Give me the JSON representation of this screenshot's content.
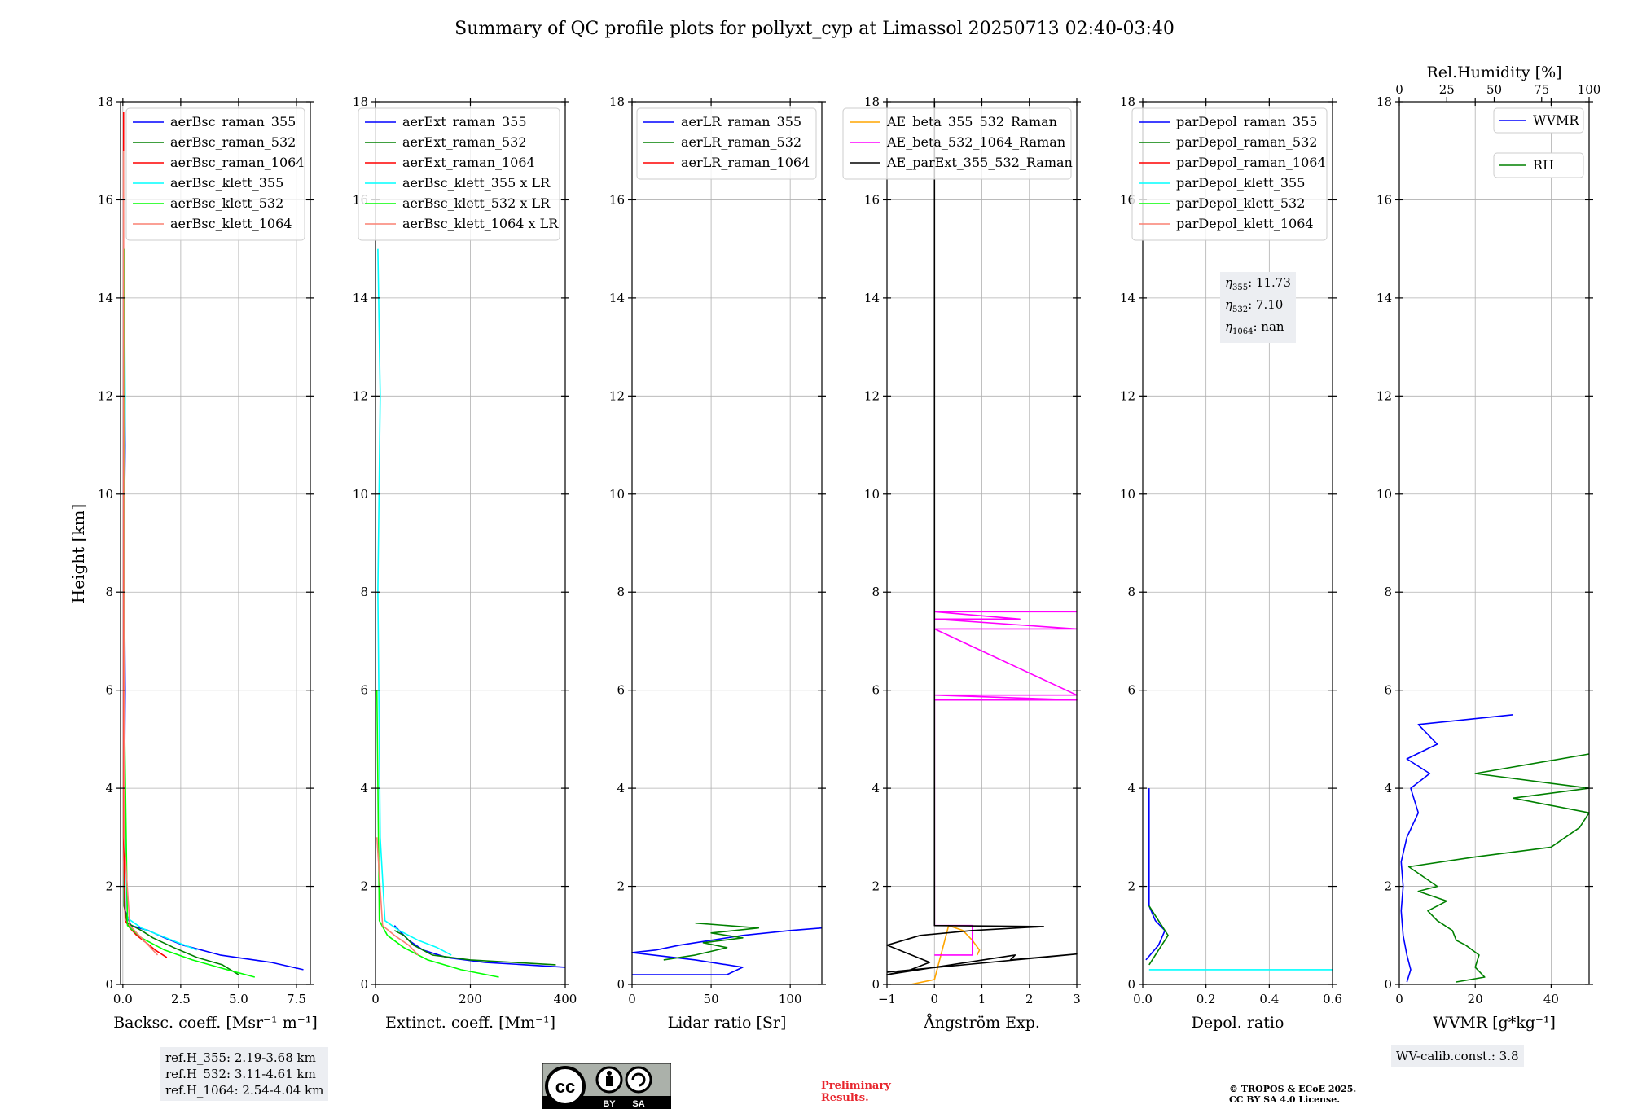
{
  "title": "Summary of QC profile plots for pollyxt_cyp at Limassol 20250713 02:40-03:40",
  "y_axis_label": "Height [km]",
  "y_ticks": [
    "0",
    "2",
    "4",
    "6",
    "8",
    "10",
    "12",
    "14",
    "16",
    "18"
  ],
  "panel_texts": {
    "eta_355": "11.73",
    "eta_532": "7.10",
    "eta_1064": "nan"
  },
  "ref_heights": [
    "ref.H_355: 2.19-3.68 km",
    "ref.H_532: 3.11-4.61 km",
    "ref.H_1064: 2.54-4.04 km"
  ],
  "wv_calib": "WV-calib.const.: 3.8",
  "license_badge": {
    "icon": "cc-by-sa-icon",
    "by": "BY",
    "sa": "SA"
  },
  "preliminary": [
    "Preliminary",
    "Results."
  ],
  "copyright": [
    "© TROPOS & ECoE 2025.",
    "CC BY SA 4.0 License."
  ],
  "colors": {
    "blue": "#0000ff",
    "green": "#008000",
    "red": "#ff0000",
    "cyan": "#00ffff",
    "lime": "#00ff00",
    "salmon": "#fa8072",
    "orange": "#ffa500",
    "magenta": "#ff00ff",
    "black": "#000000"
  },
  "chart_data": [
    {
      "type": "line",
      "xlabel": "Backsc. coeff. [Msr⁻¹ m⁻¹]",
      "ylabel": "Height [km]",
      "xlim": [
        -0.1,
        8.1
      ],
      "ylim": [
        0,
        18
      ],
      "xticks": [
        0,
        2.5,
        5,
        7.5
      ],
      "xticklabels": [
        "0.0",
        "2.5",
        "5.0",
        "7.5"
      ],
      "legend": "top-right",
      "series": [
        {
          "name": "aerBsc_raman_355",
          "color": "#0000ff",
          "x": [
            7.8,
            6.4,
            4.2,
            2.6,
            1.8,
            1.1,
            0.35,
            0.1,
            0.05,
            0.1,
            0.05,
            0.1,
            0.05
          ],
          "y": [
            0.3,
            0.45,
            0.6,
            0.8,
            0.95,
            1.1,
            1.2,
            1.5,
            3,
            6,
            9,
            11,
            14
          ]
        },
        {
          "name": "aerBsc_raman_532",
          "color": "#008000",
          "x": [
            5.0,
            4.3,
            3.2,
            2.2,
            1.3,
            0.8,
            0.2,
            0.05,
            0.05,
            0.05,
            0.05
          ],
          "y": [
            0.2,
            0.4,
            0.55,
            0.75,
            0.95,
            1.1,
            1.25,
            1.6,
            5,
            10,
            15
          ]
        },
        {
          "name": "aerBsc_raman_1064",
          "color": "#ff0000",
          "x": [
            1.9,
            1.4,
            1.0,
            0.6,
            0.3,
            0.1,
            0.03,
            0.03,
            0.03
          ],
          "y": [
            0.55,
            0.7,
            0.85,
            1.0,
            1.15,
            1.3,
            3,
            10,
            17.8
          ]
        },
        {
          "name": "aerBsc_klett_355",
          "color": "#00ffff",
          "x": [
            3.2,
            2.4,
            1.6,
            0.8,
            0.2,
            0.1,
            0.05,
            0.1,
            0.05
          ],
          "y": [
            0.7,
            0.85,
            1.0,
            1.15,
            1.35,
            3,
            8,
            12,
            15
          ]
        },
        {
          "name": "aerBsc_klett_532",
          "color": "#00ff00",
          "x": [
            5.7,
            4.5,
            3.0,
            1.8,
            0.8,
            0.2,
            0.05,
            0.05
          ],
          "y": [
            0.15,
            0.3,
            0.5,
            0.7,
            0.95,
            1.2,
            6,
            15
          ]
        },
        {
          "name": "aerBsc_klett_1064",
          "color": "#fa8072",
          "x": [
            1.5,
            1.1,
            0.7,
            0.3,
            0.05,
            0.03
          ],
          "y": [
            0.6,
            0.8,
            1.0,
            1.2,
            3,
            17
          ]
        }
      ]
    },
    {
      "type": "line",
      "xlabel": "Extinct. coeff. [Mm⁻¹]",
      "ylabel": "",
      "xlim": [
        0,
        400
      ],
      "ylim": [
        0,
        18
      ],
      "xticks": [
        0,
        200,
        400
      ],
      "xticklabels": [
        "0",
        "200",
        "400"
      ],
      "legend": "top-right",
      "series": [
        {
          "name": "aerExt_raman_355",
          "color": "#0000ff",
          "x": [
            400,
            230,
            150,
            100,
            70,
            50,
            40
          ],
          "y": [
            0.35,
            0.45,
            0.55,
            0.7,
            0.9,
            1.1,
            1.2
          ]
        },
        {
          "name": "aerExt_raman_532",
          "color": "#008000",
          "x": [
            380,
            200,
            120,
            80,
            60,
            40
          ],
          "y": [
            0.4,
            0.5,
            0.6,
            0.8,
            1.0,
            1.1
          ]
        },
        {
          "name": "aerExt_raman_1064",
          "color": "#ff0000",
          "x": [],
          "y": []
        },
        {
          "name": "aerBsc_klett_355 x LR",
          "color": "#00ffff",
          "x": [
            160,
            130,
            90,
            50,
            20,
            10,
            5,
            10,
            5
          ],
          "y": [
            0.6,
            0.75,
            0.9,
            1.1,
            1.3,
            3,
            8,
            12,
            15
          ]
        },
        {
          "name": "aerBsc_klett_532 x LR",
          "color": "#00ff00",
          "x": [
            260,
            180,
            110,
            60,
            25,
            8,
            3
          ],
          "y": [
            0.15,
            0.3,
            0.5,
            0.75,
            1.0,
            1.3,
            6
          ]
        },
        {
          "name": "aerBsc_klett_1064 x LR",
          "color": "#fa8072",
          "x": [
            90,
            70,
            40,
            15,
            3
          ],
          "y": [
            0.6,
            0.8,
            1.0,
            1.2,
            3
          ]
        }
      ]
    },
    {
      "type": "line",
      "xlabel": "Lidar ratio [Sr]",
      "ylabel": "",
      "xlim": [
        0,
        120
      ],
      "ylim": [
        0,
        18
      ],
      "xticks": [
        0,
        50,
        100
      ],
      "xticklabels": [
        "0",
        "50",
        "100"
      ],
      "legend": "top-right",
      "series": [
        {
          "name": "aerLR_raman_355",
          "color": "#0000ff",
          "x": [
            120,
            100,
            70,
            50,
            30,
            15,
            0,
            40,
            70,
            60,
            0
          ],
          "y": [
            1.15,
            1.1,
            1.0,
            0.9,
            0.8,
            0.7,
            0.65,
            0.5,
            0.35,
            0.2,
            0.2
          ]
        },
        {
          "name": "aerLR_raman_532",
          "color": "#008000",
          "x": [
            40,
            60,
            80,
            50,
            70,
            45,
            60,
            40,
            20
          ],
          "y": [
            1.25,
            1.2,
            1.15,
            1.05,
            0.95,
            0.85,
            0.75,
            0.6,
            0.5
          ]
        },
        {
          "name": "aerLR_raman_1064",
          "color": "#ff0000",
          "x": [],
          "y": []
        }
      ]
    },
    {
      "type": "line",
      "xlabel": "Ångström Exp.",
      "ylabel": "",
      "xlim": [
        -1,
        3
      ],
      "ylim": [
        0,
        18
      ],
      "xticks": [
        -1,
        0,
        1,
        2,
        3
      ],
      "xticklabels": [
        "−1",
        "0",
        "1",
        "2",
        "3"
      ],
      "legend": "top-right",
      "series": [
        {
          "name": "AE_beta_355_532_Raman",
          "color": "#ffa500",
          "x": [
            0.9,
            0.95,
            0.8,
            0.6,
            0.3,
            0.0,
            -0.5
          ],
          "y": [
            0.6,
            0.7,
            0.9,
            1.1,
            1.2,
            0.1,
            0.0
          ]
        },
        {
          "name": "AE_beta_532_1064_Raman",
          "color": "#ff00ff",
          "x": [
            0,
            0.8,
            0.8,
            0,
            0,
            3,
            0,
            3,
            0,
            3,
            0,
            1.8,
            0,
            3
          ],
          "y": [
            0.6,
            0.6,
            1.2,
            1.2,
            5.8,
            5.8,
            5.9,
            5.9,
            7.25,
            7.25,
            7.45,
            7.45,
            7.6,
            7.6
          ]
        },
        {
          "name": "AE_parExt_355_532_Raman",
          "color": "#000000",
          "x": [
            0,
            0,
            2.3,
            0.8,
            -0.3,
            -1,
            -0.1,
            -0.5,
            -1,
            1.7,
            1.6,
            3,
            -1
          ],
          "y": [
            18,
            1.2,
            1.18,
            1.1,
            1.0,
            0.8,
            0.45,
            0.3,
            0.2,
            0.6,
            0.5,
            0.62,
            0.25
          ]
        }
      ]
    },
    {
      "type": "line",
      "xlabel": "Depol. ratio",
      "ylabel": "",
      "xlim": [
        0,
        0.6
      ],
      "ylim": [
        0,
        18
      ],
      "xticks": [
        0,
        0.2,
        0.4,
        0.6
      ],
      "xticklabels": [
        "0.0",
        "0.2",
        "0.4",
        "0.6"
      ],
      "legend": "top-right",
      "series": [
        {
          "name": "parDepol_raman_355",
          "color": "#0000ff",
          "x": [
            0.01,
            0.05,
            0.07,
            0.04,
            0.02,
            0.02
          ],
          "y": [
            0.5,
            0.8,
            1.1,
            1.3,
            1.6,
            4
          ]
        },
        {
          "name": "parDepol_raman_532",
          "color": "#008000",
          "x": [
            0.02,
            0.05,
            0.08,
            0.05,
            0.02
          ],
          "y": [
            0.4,
            0.7,
            1.0,
            1.3,
            1.6
          ]
        },
        {
          "name": "parDepol_raman_1064",
          "color": "#ff0000",
          "x": [],
          "y": []
        },
        {
          "name": "parDepol_klett_355",
          "color": "#00ffff",
          "x": [
            0.02,
            0.6
          ],
          "y": [
            0.3,
            0.3
          ]
        },
        {
          "name": "parDepol_klett_532",
          "color": "#00ff00",
          "x": [],
          "y": []
        },
        {
          "name": "parDepol_klett_1064",
          "color": "#fa8072",
          "x": [],
          "y": []
        }
      ]
    },
    {
      "type": "line",
      "xlabel": "WVMR [g*kg⁻¹]",
      "x2label": "Rel.Humidity [%]",
      "ylabel": "",
      "xlim": [
        0,
        50
      ],
      "ylim": [
        0,
        18
      ],
      "xticks": [
        0,
        20,
        40
      ],
      "xticklabels": [
        "0",
        "20",
        "40"
      ],
      "x2lim": [
        0,
        100
      ],
      "x2ticks": [
        0,
        25,
        50,
        75,
        100
      ],
      "x2ticklabels": [
        "0",
        "25",
        "50",
        "75",
        "100"
      ],
      "legend": "top-right",
      "series": [
        {
          "name": "WVMR",
          "color": "#0000ff",
          "axis": "bottom",
          "x": [
            2,
            3,
            2,
            1,
            0.5,
            1,
            0.5,
            2,
            5,
            3,
            8,
            2,
            10,
            5,
            30
          ],
          "y": [
            0.05,
            0.3,
            0.6,
            1.0,
            1.5,
            2.0,
            2.5,
            3.0,
            3.5,
            4.0,
            4.3,
            4.6,
            4.9,
            5.3,
            5.5
          ]
        },
        {
          "name": "RH",
          "color": "#008000",
          "axis": "top",
          "x": [
            30,
            45,
            40,
            42,
            35,
            30,
            28,
            20,
            15,
            25,
            10,
            20,
            5,
            40,
            80,
            95,
            100,
            60,
            100,
            40,
            100
          ],
          "y": [
            0.05,
            0.15,
            0.35,
            0.6,
            0.8,
            0.9,
            1.1,
            1.3,
            1.5,
            1.7,
            1.9,
            2.0,
            2.4,
            2.6,
            2.8,
            3.2,
            3.5,
            3.8,
            4.0,
            4.3,
            4.7
          ]
        }
      ]
    }
  ]
}
